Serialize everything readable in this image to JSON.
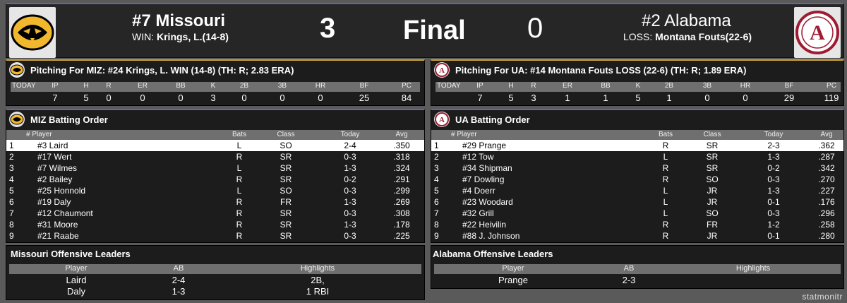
{
  "scoreboard": {
    "home": {
      "name": "#7 Missouri",
      "decision_label": "WIN:",
      "decision_pitcher": "Krings, L.(14-8)",
      "score": "3"
    },
    "status": "Final",
    "away": {
      "name": "#2 Alabama",
      "decision_label": "LOSS:",
      "decision_pitcher": "Montana Fouts(22-6)",
      "score": "0"
    }
  },
  "pitching_miz": {
    "title_pre": "Pitching For MIZ: #24 Krings, L. ",
    "title_result": "WIN (14-8)",
    "title_post": " (TH: R; 2.83 ERA)",
    "headers": [
      "TODAY",
      "IP",
      "H",
      "R",
      "ER",
      "BB",
      "K",
      "2B",
      "3B",
      "HR",
      "BF",
      "PC"
    ],
    "values": [
      "",
      "7",
      "5",
      "0",
      "0",
      "0",
      "3",
      "0",
      "0",
      "0",
      "25",
      "84"
    ]
  },
  "pitching_ua": {
    "title_pre": "Pitching For UA: #14 Montana Fouts ",
    "title_result": "LOSS (22-6)",
    "title_post": " (TH: R; 1.89 ERA)",
    "headers": [
      "TODAY",
      "IP",
      "H",
      "R",
      "ER",
      "BB",
      "K",
      "2B",
      "3B",
      "HR",
      "BF",
      "PC"
    ],
    "values": [
      "",
      "7",
      "5",
      "3",
      "1",
      "1",
      "5",
      "1",
      "0",
      "0",
      "29",
      "119"
    ]
  },
  "batting_miz": {
    "title": "MIZ Batting Order",
    "headers": {
      "player": "# Player",
      "bats": "Bats",
      "class": "Class",
      "today": "Today",
      "avg": "Avg"
    },
    "rows": [
      {
        "order": "1",
        "player": "#3 Laird",
        "bats": "L",
        "class": "SO",
        "today": "2-4",
        "avg": ".350"
      },
      {
        "order": "2",
        "player": "#17 Wert",
        "bats": "R",
        "class": "SR",
        "today": "0-3",
        "avg": ".318"
      },
      {
        "order": "3",
        "player": "#7 Wilmes",
        "bats": "L",
        "class": "SR",
        "today": "1-3",
        "avg": ".324"
      },
      {
        "order": "4",
        "player": "#2 Bailey",
        "bats": "R",
        "class": "SR",
        "today": "0-2",
        "avg": ".291"
      },
      {
        "order": "5",
        "player": "#25 Honnold",
        "bats": "L",
        "class": "SO",
        "today": "0-3",
        "avg": ".299"
      },
      {
        "order": "6",
        "player": "#19 Daly",
        "bats": "R",
        "class": "FR",
        "today": "1-3",
        "avg": ".269"
      },
      {
        "order": "7",
        "player": "#12 Chaumont",
        "bats": "R",
        "class": "SR",
        "today": "0-3",
        "avg": ".308"
      },
      {
        "order": "8",
        "player": "#31 Moore",
        "bats": "R",
        "class": "SR",
        "today": "1-3",
        "avg": ".178"
      },
      {
        "order": "9",
        "player": "#21 Raabe",
        "bats": "R",
        "class": "SR",
        "today": "0-3",
        "avg": ".225"
      }
    ]
  },
  "batting_ua": {
    "title": "UA Batting Order",
    "headers": {
      "player": "# Player",
      "bats": "Bats",
      "class": "Class",
      "today": "Today",
      "avg": "Avg"
    },
    "rows": [
      {
        "order": "1",
        "player": "#29 Prange",
        "bats": "R",
        "class": "SR",
        "today": "2-3",
        "avg": ".362"
      },
      {
        "order": "2",
        "player": "#12 Tow",
        "bats": "L",
        "class": "SR",
        "today": "1-3",
        "avg": ".287"
      },
      {
        "order": "3",
        "player": "#34 Shipman",
        "bats": "R",
        "class": "SR",
        "today": "0-2",
        "avg": ".342"
      },
      {
        "order": "4",
        "player": "#7 Dowling",
        "bats": "R",
        "class": "SO",
        "today": "0-3",
        "avg": ".270"
      },
      {
        "order": "5",
        "player": "#4 Doerr",
        "bats": "L",
        "class": "JR",
        "today": "1-3",
        "avg": ".227"
      },
      {
        "order": "6",
        "player": "#23 Woodard",
        "bats": "L",
        "class": "JR",
        "today": "0-1",
        "avg": ".176"
      },
      {
        "order": "7",
        "player": "#32 Grill",
        "bats": "L",
        "class": "SO",
        "today": "0-3",
        "avg": ".296"
      },
      {
        "order": "8",
        "player": "#22 Heivilin",
        "bats": "R",
        "class": "FR",
        "today": "1-2",
        "avg": ".258"
      },
      {
        "order": "9",
        "player": "#88 J. Johnson",
        "bats": "R",
        "class": "JR",
        "today": "0-1",
        "avg": ".280"
      }
    ]
  },
  "leaders_miz": {
    "title": "Missouri Offensive Leaders",
    "headers": [
      "Player",
      "AB",
      "Highlights"
    ],
    "rows": [
      [
        "Laird",
        "2-4",
        "2B,"
      ],
      [
        "Daly",
        "1-3",
        "1 RBI"
      ]
    ]
  },
  "leaders_ua": {
    "title": "Alabama Offensive Leaders",
    "headers": [
      "Player",
      "AB",
      "Highlights"
    ],
    "rows": [
      [
        "Prange",
        "2-3",
        ""
      ]
    ]
  },
  "brand": "statmonitr",
  "colors": {
    "miz_gold": "#c9a23a",
    "ua_crimson": "#9e1b32",
    "accent": "#6b5fb3"
  }
}
